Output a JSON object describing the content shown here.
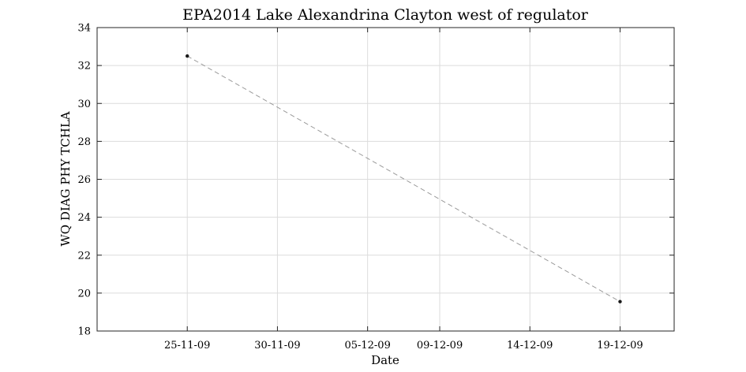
{
  "chart_data": {
    "type": "line",
    "title": "EPA2014 Lake Alexandrina Clayton west of regulator",
    "xlabel": "Date",
    "ylabel": "WQ DIAG PHY TCHLA",
    "x_tick_labels": [
      "25-11-09",
      "30-11-09",
      "05-12-09",
      "09-12-09",
      "14-12-09",
      "19-12-09"
    ],
    "x_ticks": [
      "2009-11-25",
      "2009-11-30",
      "2009-12-05",
      "2009-12-09",
      "2009-12-14",
      "2009-12-19"
    ],
    "xlim": [
      "2009-11-20",
      "2009-12-22"
    ],
    "ylim": [
      18,
      34
    ],
    "y_ticks": [
      18,
      20,
      22,
      24,
      26,
      28,
      30,
      32,
      34
    ],
    "grid": true,
    "series": [
      {
        "x": [
          "2009-11-25",
          "2009-12-19"
        ],
        "y": [
          32.5,
          19.55
        ],
        "line_color": "#9a9a9a",
        "marker_color": "#1a1a1a"
      }
    ]
  }
}
